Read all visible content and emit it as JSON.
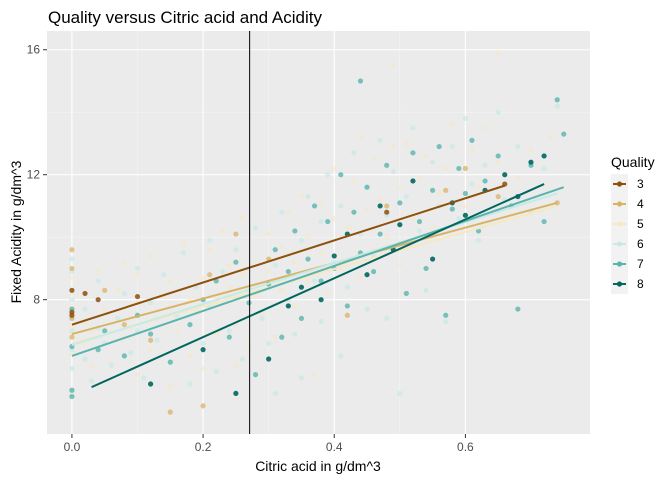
{
  "chart_data": {
    "type": "scatter",
    "title": "Quality versus  Citric acid and Acidity",
    "xlabel": "Citric acid in g/dm^3",
    "ylabel": "Fixed Acidity in g/dm^3",
    "xlim": [
      -0.038,
      0.79
    ],
    "ylim": [
      3.7,
      16.6
    ],
    "x_ticks": [
      0.0,
      0.2,
      0.4,
      0.6
    ],
    "x_tick_labels": [
      "0.0",
      "0.2",
      "0.4",
      "0.6"
    ],
    "y_ticks": [
      8,
      12,
      16
    ],
    "y_tick_labels": [
      "8",
      "12",
      "16"
    ],
    "vline_x": 0.271,
    "grid": true,
    "legend": {
      "title": "Quality",
      "position": "right"
    },
    "series": [
      {
        "name": "3",
        "color": "#8c510a",
        "trend": {
          "x": [
            0.0,
            0.66
          ],
          "y": [
            7.2,
            11.65
          ]
        },
        "points": [
          [
            0.0,
            7.5
          ],
          [
            0.02,
            8.2
          ],
          [
            0.0,
            8.3
          ],
          [
            0.0,
            7.6
          ],
          [
            0.1,
            8.1
          ],
          [
            0.04,
            8.0
          ],
          [
            0.48,
            10.8
          ],
          [
            0.66,
            11.7
          ]
        ]
      },
      {
        "name": "4",
        "color": "#d8b365",
        "trend": {
          "x": [
            0.0,
            0.74
          ],
          "y": [
            6.9,
            11.1
          ]
        },
        "points": [
          [
            0.0,
            6.8
          ],
          [
            0.0,
            7.4
          ],
          [
            0.0,
            9.0
          ],
          [
            0.0,
            9.6
          ],
          [
            0.05,
            8.3
          ],
          [
            0.08,
            7.2
          ],
          [
            0.15,
            4.4
          ],
          [
            0.2,
            4.6
          ],
          [
            0.12,
            6.7
          ],
          [
            0.21,
            8.8
          ],
          [
            0.25,
            10.1
          ],
          [
            0.3,
            9.3
          ],
          [
            0.42,
            7.5
          ],
          [
            0.48,
            11.0
          ],
          [
            0.57,
            11.5
          ],
          [
            0.6,
            12.2
          ],
          [
            0.65,
            11.3
          ],
          [
            0.74,
            11.1
          ]
        ]
      },
      {
        "name": "5",
        "color": "#f6e8c3",
        "trend": {
          "x": [
            0.0,
            0.74
          ],
          "y": [
            6.6,
            11.0
          ]
        },
        "points": [
          [
            0.0,
            6.3
          ],
          [
            0.0,
            6.9
          ],
          [
            0.0,
            7.1
          ],
          [
            0.0,
            7.5
          ],
          [
            0.0,
            7.8
          ],
          [
            0.0,
            8.2
          ],
          [
            0.0,
            8.7
          ],
          [
            0.02,
            6.6
          ],
          [
            0.02,
            7.3
          ],
          [
            0.03,
            5.9
          ],
          [
            0.03,
            7.0
          ],
          [
            0.04,
            8.9
          ],
          [
            0.05,
            7.7
          ],
          [
            0.06,
            6.0
          ],
          [
            0.07,
            8.3
          ],
          [
            0.08,
            6.8
          ],
          [
            0.08,
            9.2
          ],
          [
            0.09,
            7.1
          ],
          [
            0.1,
            5.6
          ],
          [
            0.1,
            7.9
          ],
          [
            0.1,
            8.8
          ],
          [
            0.12,
            6.4
          ],
          [
            0.12,
            9.4
          ],
          [
            0.13,
            7.4
          ],
          [
            0.14,
            8.1
          ],
          [
            0.15,
            5.2
          ],
          [
            0.15,
            8.6
          ],
          [
            0.16,
            7.0
          ],
          [
            0.17,
            9.8
          ],
          [
            0.18,
            6.2
          ],
          [
            0.18,
            8.0
          ],
          [
            0.19,
            7.6
          ],
          [
            0.2,
            5.8
          ],
          [
            0.2,
            8.7
          ],
          [
            0.21,
            9.6
          ],
          [
            0.22,
            6.9
          ],
          [
            0.22,
            7.9
          ],
          [
            0.23,
            10.2
          ],
          [
            0.24,
            8.4
          ],
          [
            0.24,
            9.1
          ],
          [
            0.25,
            5.9
          ],
          [
            0.25,
            7.2
          ],
          [
            0.26,
            8.8
          ],
          [
            0.26,
            10.6
          ],
          [
            0.27,
            6.5
          ],
          [
            0.28,
            9.4
          ],
          [
            0.28,
            8.1
          ],
          [
            0.29,
            7.5
          ],
          [
            0.3,
            10.1
          ],
          [
            0.3,
            8.9
          ],
          [
            0.31,
            6.8
          ],
          [
            0.32,
            9.7
          ],
          [
            0.32,
            8.3
          ],
          [
            0.33,
            10.8
          ],
          [
            0.34,
            7.8
          ],
          [
            0.34,
            9.2
          ],
          [
            0.35,
            11.3
          ],
          [
            0.36,
            8.6
          ],
          [
            0.36,
            10.0
          ],
          [
            0.37,
            5.6
          ],
          [
            0.38,
            9.5
          ],
          [
            0.38,
            11.1
          ],
          [
            0.39,
            8.2
          ],
          [
            0.4,
            10.6
          ],
          [
            0.4,
            12.2
          ],
          [
            0.41,
            9.0
          ],
          [
            0.42,
            10.3
          ],
          [
            0.43,
            11.8
          ],
          [
            0.44,
            8.7
          ],
          [
            0.44,
            13.2
          ],
          [
            0.45,
            10.9
          ],
          [
            0.46,
            9.6
          ],
          [
            0.46,
            12.5
          ],
          [
            0.47,
            11.2
          ],
          [
            0.48,
            10.0
          ],
          [
            0.49,
            12.9
          ],
          [
            0.49,
            15.5
          ],
          [
            0.5,
            11.6
          ],
          [
            0.5,
            9.1
          ],
          [
            0.51,
            13.0
          ],
          [
            0.52,
            10.6
          ],
          [
            0.53,
            11.9
          ],
          [
            0.54,
            12.6
          ],
          [
            0.55,
            10.3
          ],
          [
            0.56,
            11.4
          ],
          [
            0.57,
            12.2
          ],
          [
            0.58,
            13.6
          ],
          [
            0.6,
            11.0
          ],
          [
            0.61,
            12.8
          ],
          [
            0.62,
            11.6
          ],
          [
            0.63,
            13.5
          ],
          [
            0.65,
            12.4
          ],
          [
            0.65,
            15.9
          ],
          [
            0.68,
            11.9
          ],
          [
            0.7,
            12.8
          ],
          [
            0.73,
            13.2
          ]
        ]
      },
      {
        "name": "6",
        "color": "#c7eae5",
        "trend": {
          "x": [
            0.0,
            0.74
          ],
          "y": [
            6.55,
            11.4
          ]
        },
        "points": [
          [
            0.0,
            5.1
          ],
          [
            0.0,
            5.8
          ],
          [
            0.0,
            6.4
          ],
          [
            0.0,
            7.0
          ],
          [
            0.0,
            7.4
          ],
          [
            0.0,
            8.0
          ],
          [
            0.0,
            8.9
          ],
          [
            0.0,
            9.3
          ],
          [
            0.02,
            6.1
          ],
          [
            0.02,
            7.7
          ],
          [
            0.03,
            5.4
          ],
          [
            0.04,
            7.1
          ],
          [
            0.04,
            8.6
          ],
          [
            0.05,
            6.6
          ],
          [
            0.06,
            5.9
          ],
          [
            0.07,
            7.4
          ],
          [
            0.08,
            8.2
          ],
          [
            0.09,
            6.3
          ],
          [
            0.1,
            7.0
          ],
          [
            0.1,
            9.0
          ],
          [
            0.11,
            5.5
          ],
          [
            0.12,
            7.9
          ],
          [
            0.13,
            6.7
          ],
          [
            0.14,
            8.8
          ],
          [
            0.15,
            6.0
          ],
          [
            0.16,
            7.5
          ],
          [
            0.17,
            9.5
          ],
          [
            0.18,
            5.3
          ],
          [
            0.19,
            8.4
          ],
          [
            0.2,
            6.6
          ],
          [
            0.21,
            7.8
          ],
          [
            0.21,
            9.9
          ],
          [
            0.22,
            5.7
          ],
          [
            0.23,
            8.9
          ],
          [
            0.24,
            7.0
          ],
          [
            0.25,
            9.6
          ],
          [
            0.26,
            6.1
          ],
          [
            0.27,
            8.3
          ],
          [
            0.28,
            10.3
          ],
          [
            0.29,
            7.4
          ],
          [
            0.3,
            6.6
          ],
          [
            0.31,
            9.1
          ],
          [
            0.31,
            5.0
          ],
          [
            0.32,
            10.8
          ],
          [
            0.33,
            8.0
          ],
          [
            0.34,
            6.9
          ],
          [
            0.35,
            9.9
          ],
          [
            0.35,
            5.5
          ],
          [
            0.36,
            11.3
          ],
          [
            0.37,
            8.6
          ],
          [
            0.38,
            7.3
          ],
          [
            0.38,
            10.5
          ],
          [
            0.39,
            12.0
          ],
          [
            0.4,
            9.2
          ],
          [
            0.41,
            6.2
          ],
          [
            0.41,
            11.0
          ],
          [
            0.42,
            8.4
          ],
          [
            0.43,
            12.7
          ],
          [
            0.44,
            10.1
          ],
          [
            0.45,
            7.7
          ],
          [
            0.45,
            11.6
          ],
          [
            0.46,
            9.4
          ],
          [
            0.47,
            13.1
          ],
          [
            0.48,
            10.7
          ],
          [
            0.48,
            7.4
          ],
          [
            0.49,
            12.1
          ],
          [
            0.5,
            5.0
          ],
          [
            0.5,
            9.8
          ],
          [
            0.51,
            11.3
          ],
          [
            0.52,
            13.5
          ],
          [
            0.53,
            10.2
          ],
          [
            0.54,
            8.3
          ],
          [
            0.55,
            12.4
          ],
          [
            0.56,
            11.0
          ],
          [
            0.57,
            7.3
          ],
          [
            0.58,
            12.9
          ],
          [
            0.59,
            10.6
          ],
          [
            0.6,
            13.8
          ],
          [
            0.61,
            11.7
          ],
          [
            0.62,
            9.9
          ],
          [
            0.63,
            12.3
          ],
          [
            0.65,
            14.0
          ],
          [
            0.66,
            11.2
          ],
          [
            0.68,
            12.9
          ],
          [
            0.7,
            10.8
          ],
          [
            0.72,
            12.2
          ],
          [
            0.74,
            14.2
          ]
        ]
      },
      {
        "name": "7",
        "color": "#5ab4ac",
        "trend": {
          "x": [
            0.0,
            0.75
          ],
          "y": [
            6.2,
            11.6
          ]
        },
        "points": [
          [
            0.0,
            5.1
          ],
          [
            0.0,
            4.9
          ],
          [
            0.0,
            6.5
          ],
          [
            0.0,
            7.7
          ],
          [
            0.04,
            6.4
          ],
          [
            0.05,
            7.0
          ],
          [
            0.08,
            6.2
          ],
          [
            0.1,
            7.5
          ],
          [
            0.12,
            6.9
          ],
          [
            0.15,
            6.0
          ],
          [
            0.18,
            7.2
          ],
          [
            0.2,
            8.0
          ],
          [
            0.22,
            8.6
          ],
          [
            0.24,
            6.8
          ],
          [
            0.25,
            9.2
          ],
          [
            0.27,
            7.9
          ],
          [
            0.28,
            5.6
          ],
          [
            0.3,
            8.5
          ],
          [
            0.31,
            9.6
          ],
          [
            0.32,
            6.8
          ],
          [
            0.33,
            8.9
          ],
          [
            0.34,
            10.2
          ],
          [
            0.35,
            7.4
          ],
          [
            0.36,
            9.3
          ],
          [
            0.37,
            11.0
          ],
          [
            0.38,
            8.6
          ],
          [
            0.39,
            10.5
          ],
          [
            0.4,
            9.0
          ],
          [
            0.41,
            12.0
          ],
          [
            0.42,
            7.8
          ],
          [
            0.43,
            10.8
          ],
          [
            0.44,
            9.5
          ],
          [
            0.44,
            15.0
          ],
          [
            0.45,
            11.6
          ],
          [
            0.46,
            8.9
          ],
          [
            0.47,
            10.1
          ],
          [
            0.48,
            12.3
          ],
          [
            0.49,
            9.7
          ],
          [
            0.5,
            11.1
          ],
          [
            0.51,
            8.2
          ],
          [
            0.52,
            12.7
          ],
          [
            0.53,
            10.5
          ],
          [
            0.54,
            9.0
          ],
          [
            0.55,
            11.5
          ],
          [
            0.56,
            12.9
          ],
          [
            0.57,
            7.5
          ],
          [
            0.58,
            10.9
          ],
          [
            0.59,
            12.2
          ],
          [
            0.6,
            11.4
          ],
          [
            0.61,
            13.1
          ],
          [
            0.62,
            10.2
          ],
          [
            0.63,
            11.8
          ],
          [
            0.65,
            12.6
          ],
          [
            0.67,
            11.0
          ],
          [
            0.68,
            7.7
          ],
          [
            0.7,
            12.3
          ],
          [
            0.72,
            10.5
          ],
          [
            0.74,
            14.4
          ],
          [
            0.75,
            13.3
          ]
        ]
      },
      {
        "name": "8",
        "color": "#01665e",
        "trend": {
          "x": [
            0.03,
            0.72
          ],
          "y": [
            5.2,
            11.7
          ]
        },
        "points": [
          [
            0.12,
            5.3
          ],
          [
            0.2,
            6.4
          ],
          [
            0.25,
            5.0
          ],
          [
            0.3,
            6.1
          ],
          [
            0.33,
            7.8
          ],
          [
            0.35,
            8.4
          ],
          [
            0.38,
            8.0
          ],
          [
            0.4,
            9.4
          ],
          [
            0.42,
            10.1
          ],
          [
            0.45,
            8.8
          ],
          [
            0.47,
            11.0
          ],
          [
            0.49,
            9.6
          ],
          [
            0.5,
            10.4
          ],
          [
            0.52,
            11.8
          ],
          [
            0.55,
            9.3
          ],
          [
            0.58,
            11.1
          ],
          [
            0.6,
            10.7
          ],
          [
            0.63,
            11.5
          ],
          [
            0.66,
            12.0
          ],
          [
            0.68,
            11.3
          ],
          [
            0.7,
            12.4
          ],
          [
            0.72,
            12.6
          ]
        ]
      }
    ]
  }
}
